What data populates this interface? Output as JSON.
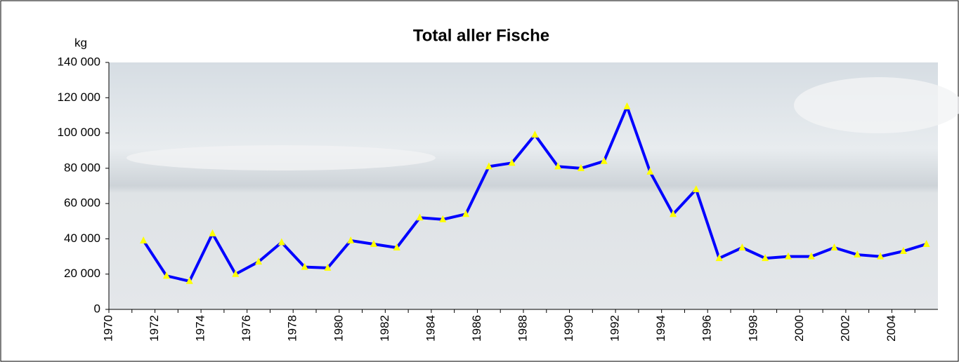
{
  "chart_data": {
    "type": "line",
    "title": "Total aller Fische",
    "y_label": "kg",
    "categories": [
      "1970",
      null,
      "1972",
      null,
      "1974",
      null,
      "1976",
      null,
      "1978",
      null,
      "1980",
      null,
      "1982",
      null,
      "1984",
      null,
      "1986",
      null,
      "1988",
      null,
      "1990",
      null,
      "1992",
      null,
      "1994",
      null,
      "1996",
      null,
      "1998",
      null,
      "2000",
      null,
      "2002",
      null,
      "2004",
      null
    ],
    "series": [
      {
        "color": "#0000ff",
        "marker_color": "#ffff00",
        "values": [
          null,
          39000,
          19000,
          16000,
          43000,
          20000,
          27000,
          38000,
          24000,
          23500,
          39000,
          37000,
          35000,
          52000,
          51000,
          54000,
          81000,
          83000,
          99000,
          81000,
          80000,
          84000,
          115000,
          78000,
          54000,
          68000,
          29000,
          35000,
          29000,
          30000,
          30000,
          35000,
          31000,
          30000,
          33000,
          37000
        ]
      }
    ],
    "ylim": [
      0,
      140000
    ],
    "yticks": [
      0,
      {
        "value": 20000,
        "label": "20 000"
      },
      {
        "value": 40000,
        "label": "40 000"
      },
      {
        "value": 60000,
        "label": "60 000"
      },
      {
        "value": 80000,
        "label": "80 000"
      },
      {
        "value": 100000,
        "label": "100 000"
      },
      {
        "value": 120000,
        "label": "120 000"
      },
      {
        "value": 140000,
        "label": "140 000"
      }
    ]
  }
}
